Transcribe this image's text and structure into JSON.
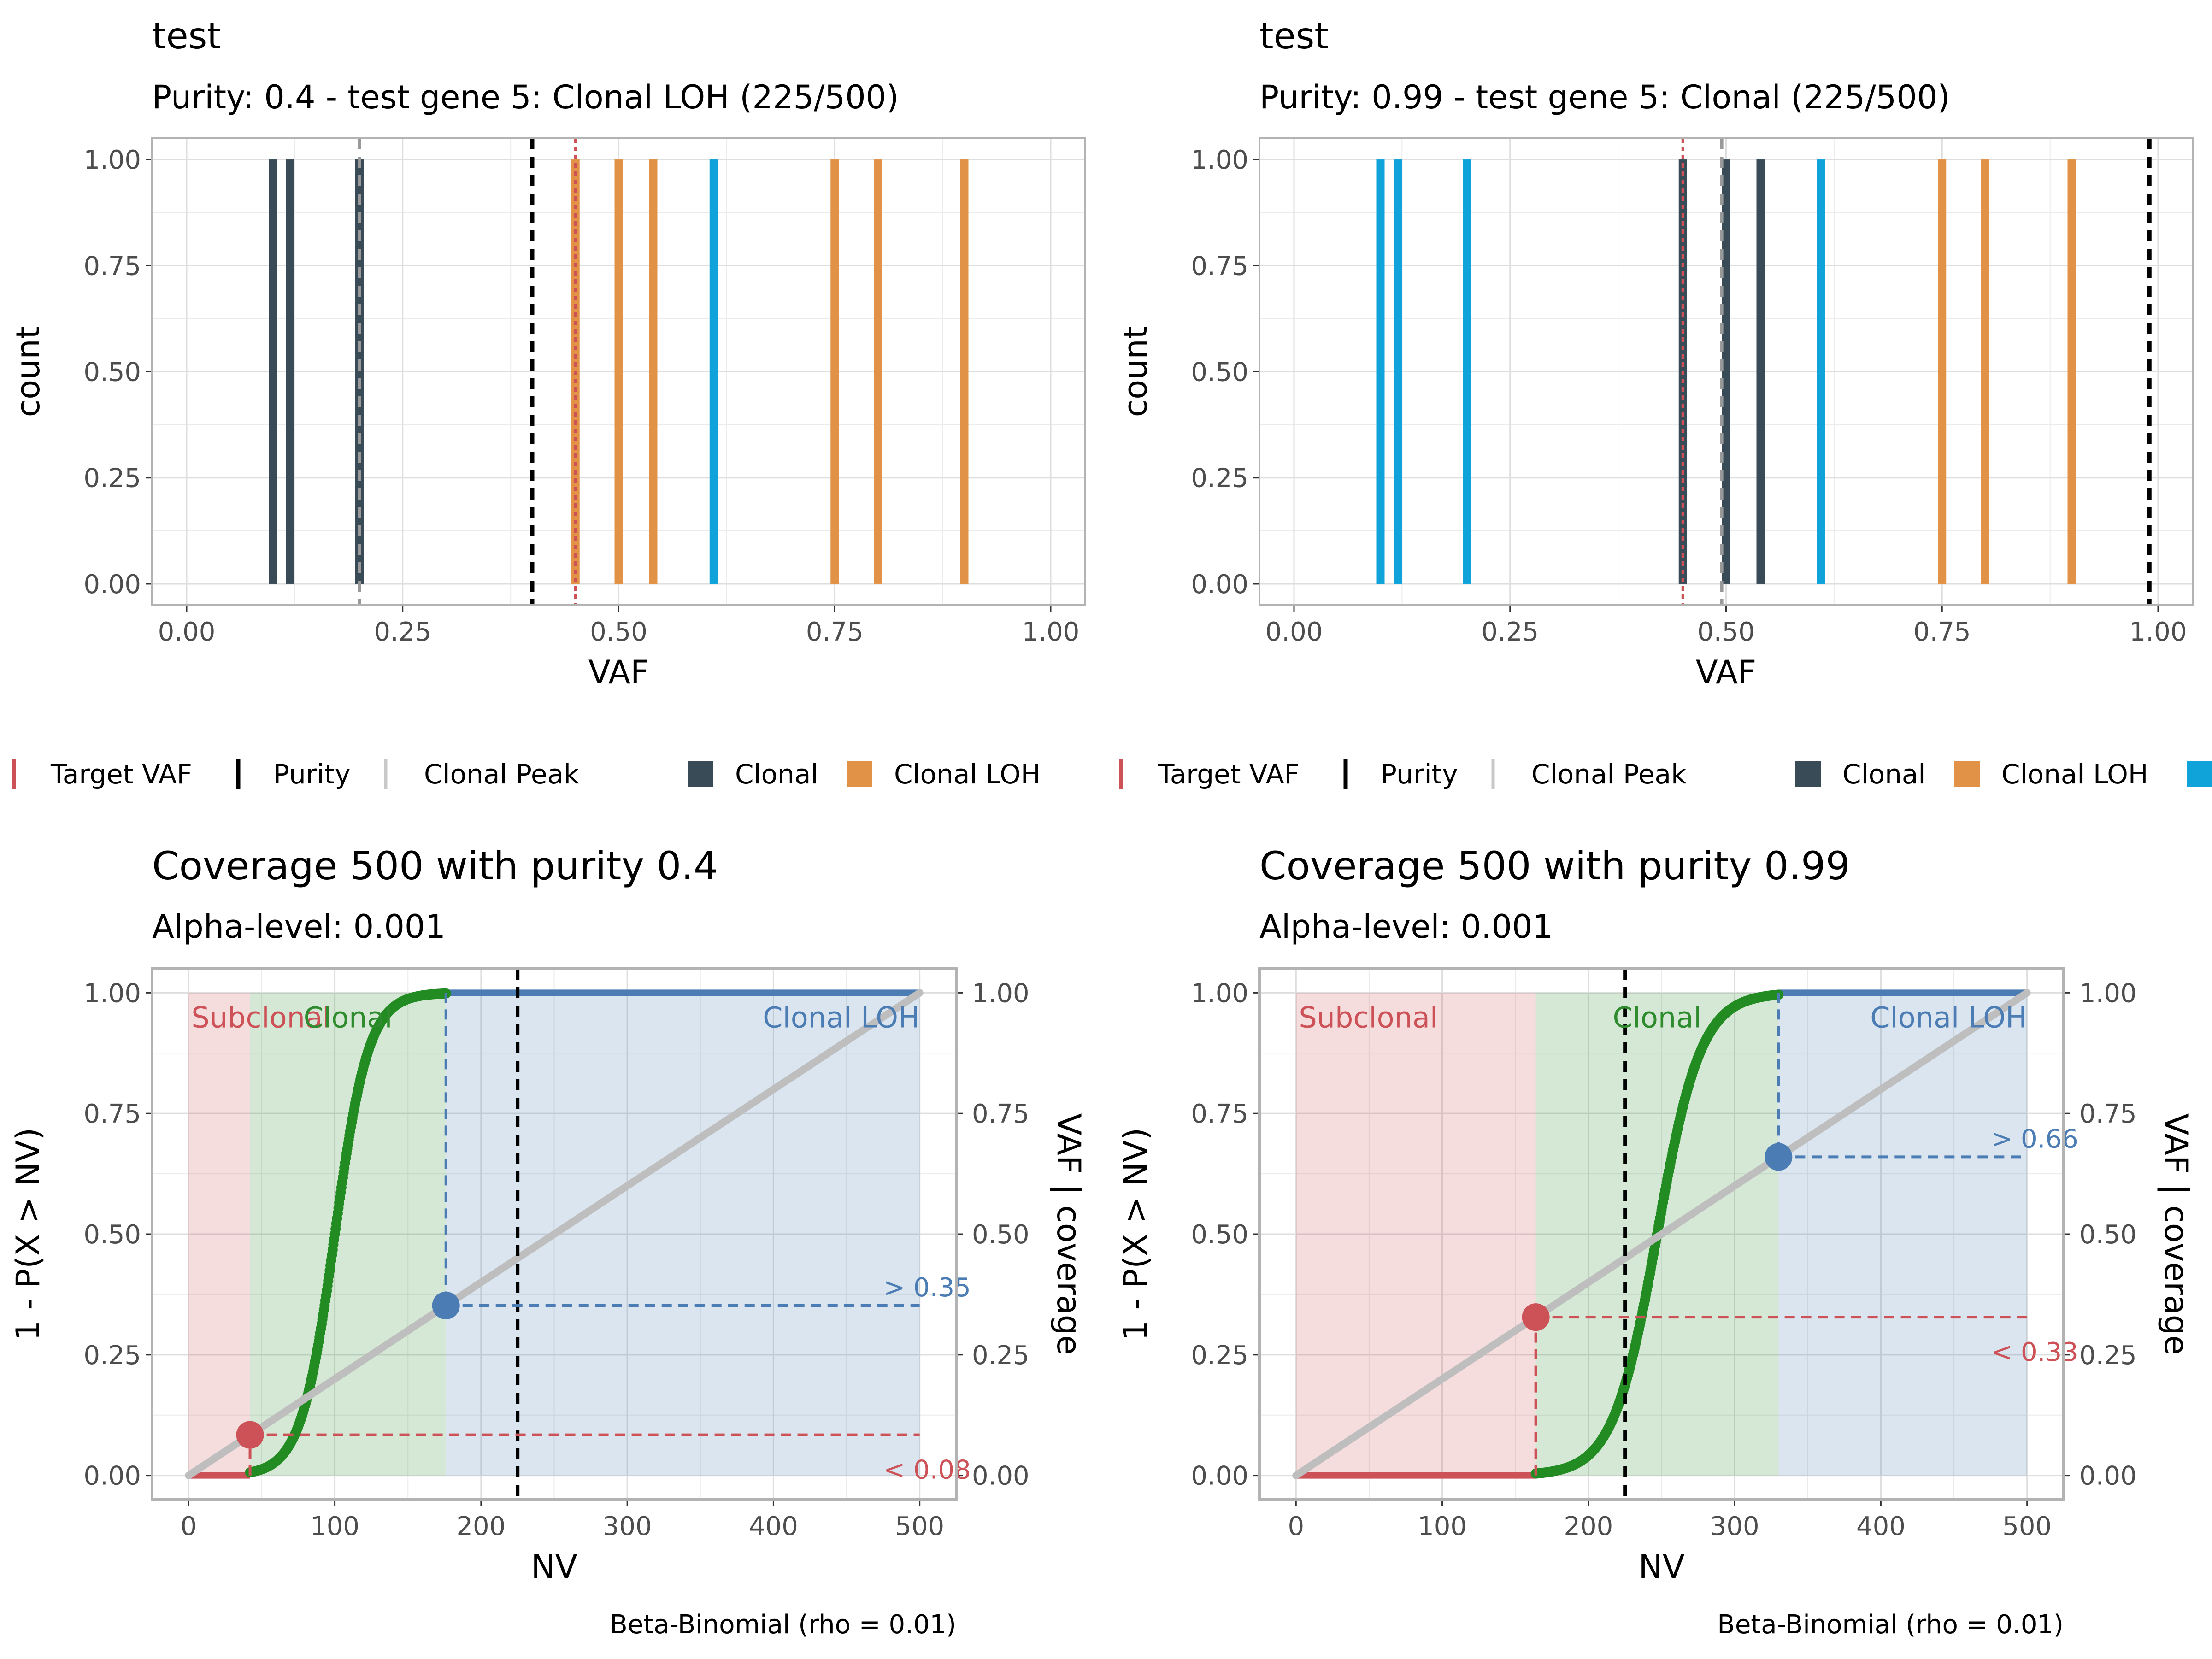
{
  "chart_data": [
    {
      "type": "bar",
      "title": "test",
      "subtitle": "Purity: 0.4 - test gene 5: Clonal LOH (225/500)",
      "xlabel": "VAF",
      "ylabel": "count",
      "xlim": [
        -0.04,
        1.04
      ],
      "ylim": [
        -0.05,
        1.05
      ],
      "xticks": [
        "0.00",
        "0.25",
        "0.50",
        "0.75",
        "1.00"
      ],
      "yticks": [
        "0.00",
        "0.25",
        "0.50",
        "0.75",
        "1.00"
      ],
      "grid": true,
      "series": [
        {
          "name": "Clonal",
          "color": "#384b57",
          "x": [
            0.1,
            0.12,
            0.2
          ],
          "values": [
            1,
            1,
            1
          ]
        },
        {
          "name": "Clonal LOH",
          "color": "#e19246",
          "x": [
            0.45,
            0.5,
            0.54,
            0.75,
            0.8,
            0.9
          ],
          "values": [
            1,
            1,
            1,
            1,
            1,
            1
          ]
        },
        {
          "name": "",
          "color": "#0fa3d9",
          "x": [
            0.61
          ],
          "values": [
            1
          ]
        }
      ],
      "reference_lines": [
        {
          "label": "Target VAF",
          "x": 0.45,
          "color": "#cd5257",
          "dash": "dotted"
        },
        {
          "label": "Purity",
          "x": 0.4,
          "color": "#000000",
          "dash": "dashed"
        },
        {
          "label": "Clonal Peak",
          "x": 0.2,
          "color": "#999999",
          "dash": "dashed"
        }
      ],
      "legend": {
        "placement": "bottom",
        "items": [
          "Target VAF",
          "Purity",
          "Clonal Peak",
          "Clonal",
          "Clonal LOH"
        ]
      }
    },
    {
      "type": "bar",
      "title": "test",
      "subtitle": "Purity: 0.99 - test gene 5: Clonal (225/500)",
      "xlabel": "VAF",
      "ylabel": "count",
      "xlim": [
        -0.04,
        1.04
      ],
      "ylim": [
        -0.05,
        1.05
      ],
      "xticks": [
        "0.00",
        "0.25",
        "0.50",
        "0.75",
        "1.00"
      ],
      "yticks": [
        "0.00",
        "0.25",
        "0.50",
        "0.75",
        "1.00"
      ],
      "grid": true,
      "series": [
        {
          "name": "Clonal",
          "color": "#384b57",
          "x": [
            0.45,
            0.5,
            0.54
          ],
          "values": [
            1,
            1,
            1
          ]
        },
        {
          "name": "Clonal LOH",
          "color": "#e19246",
          "x": [
            0.75,
            0.8,
            0.9
          ],
          "values": [
            1,
            1,
            1
          ]
        },
        {
          "name": "",
          "color": "#0fa3d9",
          "x": [
            0.1,
            0.12,
            0.2,
            0.61
          ],
          "values": [
            1,
            1,
            1,
            1
          ]
        }
      ],
      "reference_lines": [
        {
          "label": "Target VAF",
          "x": 0.45,
          "color": "#cd5257",
          "dash": "dotted"
        },
        {
          "label": "Purity",
          "x": 0.99,
          "color": "#000000",
          "dash": "dashed"
        },
        {
          "label": "Clonal Peak",
          "x": 0.495,
          "color": "#999999",
          "dash": "dashed"
        }
      ],
      "legend": {
        "placement": "bottom",
        "items": [
          "Target VAF",
          "Purity",
          "Clonal Peak",
          "Clonal",
          "Clonal LOH"
        ]
      }
    },
    {
      "type": "line",
      "title": "Coverage 500 with purity 0.4",
      "subtitle": "Alpha-level: 0.001",
      "xlabel": "NV",
      "ylabel": "1 - P(X > NV)",
      "y2label": "VAF | coverage",
      "caption": "Beta-Binomial (rho = 0.01)",
      "coverage": 500,
      "purity": 0.4,
      "xlim": [
        -25,
        525
      ],
      "ylim": [
        -0.05,
        1.05
      ],
      "xticks": [
        "0",
        "100",
        "200",
        "300",
        "400",
        "500"
      ],
      "yticks": [
        "0.00",
        "0.25",
        "0.50",
        "0.75",
        "1.00"
      ],
      "y2ticks": [
        "0.00",
        "0.25",
        "0.50",
        "0.75",
        "1.00"
      ],
      "grid": true,
      "regions": [
        {
          "label": "Subclonal",
          "from": 0,
          "to": 42,
          "color": "#cd5257"
        },
        {
          "label": "Clonal",
          "from": 42,
          "to": 176,
          "color": "#2e8b2e"
        },
        {
          "label": "Clonal LOH",
          "from": 176,
          "to": 500,
          "color": "#4b7db4"
        }
      ],
      "cdf": {
        "midpoint": 100,
        "scale": 11.5,
        "start": 42,
        "end": 176,
        "color": "#228b22"
      },
      "purity_line_nv": 225,
      "vaf_line": {
        "from": [
          0,
          0
        ],
        "to": [
          500,
          1
        ],
        "color": "#bebebe"
      },
      "thresholds": [
        {
          "label": "< 0.08",
          "nv": 42,
          "vaf": 0.084,
          "color": "#cd5257"
        },
        {
          "label": "> 0.35",
          "nv": 176,
          "vaf": 0.352,
          "color": "#4b7db4"
        }
      ]
    },
    {
      "type": "line",
      "title": "Coverage 500 with purity 0.99",
      "subtitle": "Alpha-level: 0.001",
      "xlabel": "NV",
      "ylabel": "1 - P(X > NV)",
      "y2label": "VAF | coverage",
      "caption": "Beta-Binomial (rho = 0.01)",
      "coverage": 500,
      "purity": 0.99,
      "xlim": [
        -25,
        525
      ],
      "ylim": [
        -0.05,
        1.05
      ],
      "xticks": [
        "0",
        "100",
        "200",
        "300",
        "400",
        "500"
      ],
      "yticks": [
        "0.00",
        "0.25",
        "0.50",
        "0.75",
        "1.00"
      ],
      "y2ticks": [
        "0.00",
        "0.25",
        "0.50",
        "0.75",
        "1.00"
      ],
      "grid": true,
      "regions": [
        {
          "label": "Subclonal",
          "from": 0,
          "to": 164,
          "color": "#cd5257"
        },
        {
          "label": "Clonal",
          "from": 164,
          "to": 330,
          "color": "#2e8b2e"
        },
        {
          "label": "Clonal LOH",
          "from": 330,
          "to": 500,
          "color": "#4b7db4"
        }
      ],
      "cdf": {
        "midpoint": 247,
        "scale": 15,
        "start": 164,
        "end": 330,
        "color": "#228b22"
      },
      "purity_line_nv": 225,
      "vaf_line": {
        "from": [
          0,
          0
        ],
        "to": [
          500,
          1
        ],
        "color": "#bebebe"
      },
      "thresholds": [
        {
          "label": "< 0.33",
          "nv": 164,
          "vaf": 0.328,
          "color": "#cd5257"
        },
        {
          "label": "> 0.66",
          "nv": 330,
          "vaf": 0.66,
          "color": "#4b7db4"
        }
      ]
    }
  ]
}
